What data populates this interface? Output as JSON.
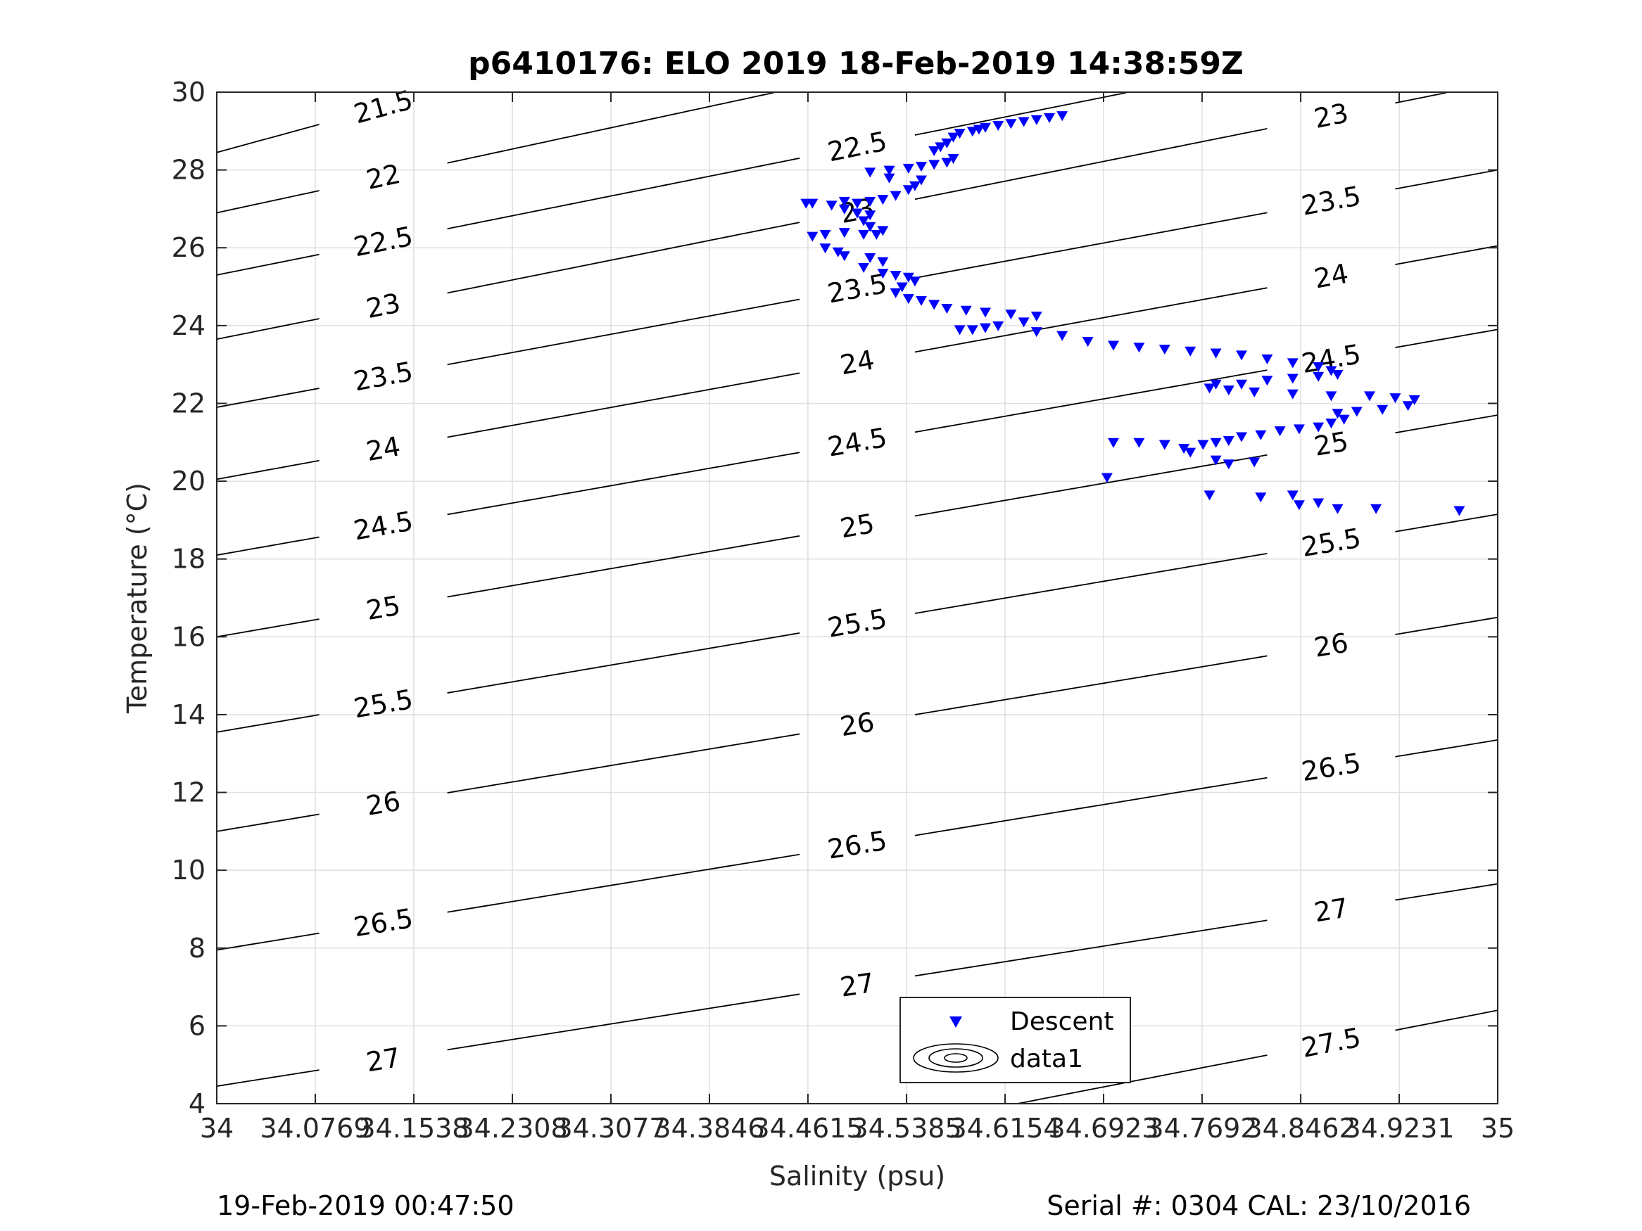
{
  "chart_data": {
    "type": "scatter",
    "title": "p6410176: ELO 2019 18-Feb-2019 14:38:59Z",
    "xlabel": "Salinity (psu)",
    "ylabel": "Temperature (°C)",
    "xlim": [
      34,
      35
    ],
    "ylim": [
      4,
      30
    ],
    "x_ticks": [
      34,
      34.0769,
      34.1538,
      34.2308,
      34.3077,
      34.3846,
      34.4615,
      34.5385,
      34.6154,
      34.6923,
      34.7692,
      34.8462,
      34.9231,
      35
    ],
    "x_tick_labels": [
      "34",
      "34.0769",
      "34.1538",
      "34.2308",
      "34.3077",
      "34.3846",
      "34.4615",
      "34.5385",
      "34.6154",
      "34.6923",
      "34.7692",
      "34.8462",
      "34.9231",
      "35"
    ],
    "y_ticks": [
      4,
      6,
      8,
      10,
      12,
      14,
      16,
      18,
      20,
      22,
      24,
      26,
      28,
      30
    ],
    "y_tick_labels": [
      "4",
      "6",
      "8",
      "10",
      "12",
      "14",
      "16",
      "18",
      "20",
      "22",
      "24",
      "26",
      "28",
      "30"
    ],
    "grid": true,
    "legend": {
      "placement": "bottom-center",
      "entries": [
        "Descent",
        "data1"
      ]
    },
    "colors": {
      "descent": "#0000ff",
      "contour": "#000000",
      "grid": "#dfdfdf"
    },
    "series": [
      {
        "name": "Descent",
        "marker": "triangle-down",
        "points": [
          [
            34.66,
            29.4
          ],
          [
            34.65,
            29.35
          ],
          [
            34.64,
            29.3
          ],
          [
            34.63,
            29.25
          ],
          [
            34.62,
            29.2
          ],
          [
            34.61,
            29.15
          ],
          [
            34.6,
            29.1
          ],
          [
            34.595,
            29.05
          ],
          [
            34.59,
            29.0
          ],
          [
            34.58,
            28.95
          ],
          [
            34.575,
            28.85
          ],
          [
            34.57,
            28.7
          ],
          [
            34.565,
            28.6
          ],
          [
            34.56,
            28.5
          ],
          [
            34.575,
            28.3
          ],
          [
            34.57,
            28.2
          ],
          [
            34.56,
            28.15
          ],
          [
            34.55,
            28.1
          ],
          [
            34.54,
            28.05
          ],
          [
            34.525,
            28.0
          ],
          [
            34.51,
            27.95
          ],
          [
            34.525,
            27.8
          ],
          [
            34.55,
            27.75
          ],
          [
            34.545,
            27.6
          ],
          [
            34.54,
            27.5
          ],
          [
            34.53,
            27.35
          ],
          [
            34.52,
            27.25
          ],
          [
            34.51,
            27.2
          ],
          [
            34.5,
            27.15
          ],
          [
            34.49,
            27.2
          ],
          [
            34.48,
            27.1
          ],
          [
            34.465,
            27.15
          ],
          [
            34.46,
            27.15
          ],
          [
            34.49,
            27.0
          ],
          [
            34.5,
            26.9
          ],
          [
            34.51,
            26.85
          ],
          [
            34.505,
            26.7
          ],
          [
            34.51,
            26.55
          ],
          [
            34.52,
            26.45
          ],
          [
            34.515,
            26.35
          ],
          [
            34.505,
            26.35
          ],
          [
            34.49,
            26.4
          ],
          [
            34.475,
            26.35
          ],
          [
            34.465,
            26.3
          ],
          [
            34.475,
            26.0
          ],
          [
            34.485,
            25.9
          ],
          [
            34.49,
            25.8
          ],
          [
            34.51,
            25.75
          ],
          [
            34.52,
            25.65
          ],
          [
            34.505,
            25.5
          ],
          [
            34.52,
            25.35
          ],
          [
            34.53,
            25.3
          ],
          [
            34.54,
            25.25
          ],
          [
            34.545,
            25.15
          ],
          [
            34.535,
            25.0
          ],
          [
            34.53,
            24.85
          ],
          [
            34.54,
            24.7
          ],
          [
            34.55,
            24.65
          ],
          [
            34.56,
            24.55
          ],
          [
            34.57,
            24.45
          ],
          [
            34.585,
            24.4
          ],
          [
            34.6,
            24.35
          ],
          [
            34.62,
            24.3
          ],
          [
            34.64,
            24.25
          ],
          [
            34.63,
            24.1
          ],
          [
            34.61,
            24.0
          ],
          [
            34.6,
            23.95
          ],
          [
            34.59,
            23.9
          ],
          [
            34.58,
            23.9
          ],
          [
            34.64,
            23.85
          ],
          [
            34.66,
            23.75
          ],
          [
            34.68,
            23.6
          ],
          [
            34.7,
            23.5
          ],
          [
            34.72,
            23.45
          ],
          [
            34.74,
            23.4
          ],
          [
            34.76,
            23.35
          ],
          [
            34.78,
            23.3
          ],
          [
            34.8,
            23.25
          ],
          [
            34.82,
            23.15
          ],
          [
            34.84,
            23.05
          ],
          [
            34.86,
            22.95
          ],
          [
            34.87,
            22.85
          ],
          [
            34.875,
            22.75
          ],
          [
            34.86,
            22.7
          ],
          [
            34.84,
            22.65
          ],
          [
            34.82,
            22.6
          ],
          [
            34.8,
            22.5
          ],
          [
            34.78,
            22.5
          ],
          [
            34.775,
            22.4
          ],
          [
            34.79,
            22.35
          ],
          [
            34.81,
            22.3
          ],
          [
            34.84,
            22.25
          ],
          [
            34.87,
            22.2
          ],
          [
            34.9,
            22.2
          ],
          [
            34.92,
            22.15
          ],
          [
            34.935,
            22.1
          ],
          [
            34.93,
            21.95
          ],
          [
            34.91,
            21.85
          ],
          [
            34.89,
            21.8
          ],
          [
            34.875,
            21.75
          ],
          [
            34.88,
            21.6
          ],
          [
            34.87,
            21.5
          ],
          [
            34.86,
            21.4
          ],
          [
            34.845,
            21.35
          ],
          [
            34.83,
            21.3
          ],
          [
            34.815,
            21.2
          ],
          [
            34.8,
            21.15
          ],
          [
            34.79,
            21.05
          ],
          [
            34.78,
            21.0
          ],
          [
            34.77,
            20.95
          ],
          [
            34.755,
            20.85
          ],
          [
            34.74,
            20.95
          ],
          [
            34.72,
            21.0
          ],
          [
            34.7,
            21.0
          ],
          [
            34.76,
            20.75
          ],
          [
            34.78,
            20.55
          ],
          [
            34.79,
            20.45
          ],
          [
            34.81,
            20.5
          ],
          [
            34.695,
            20.1
          ],
          [
            34.775,
            19.65
          ],
          [
            34.815,
            19.6
          ],
          [
            34.84,
            19.65
          ],
          [
            34.845,
            19.4
          ],
          [
            34.86,
            19.45
          ],
          [
            34.875,
            19.3
          ],
          [
            34.905,
            19.3
          ],
          [
            34.97,
            19.25
          ]
        ]
      }
    ],
    "contours": {
      "name": "data1",
      "levels": [
        "21.5",
        "22",
        "22.5",
        "23",
        "23.5",
        "24",
        "24.5",
        "25",
        "25.5",
        "26",
        "26.5",
        "27",
        "27.5"
      ]
    }
  },
  "footer": {
    "timestamp": "19-Feb-2019 00:47:50",
    "serial": "Serial #: 0304  CAL: 23/10/2016"
  }
}
